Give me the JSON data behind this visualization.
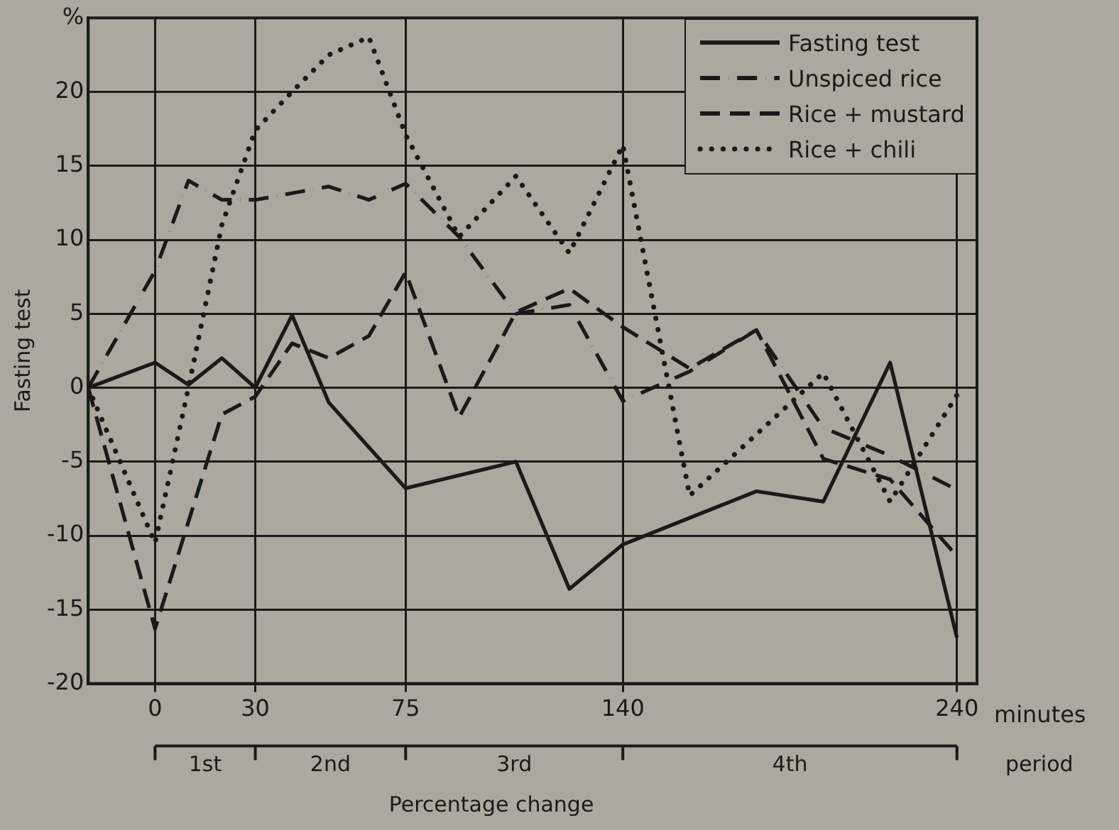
{
  "chart_data": {
    "type": "line",
    "title": "Percentage change",
    "xlabel": "minutes",
    "ylabel": "Fasting test",
    "annotations": [
      "1st",
      "2nd",
      "3rd",
      "4th",
      "period"
    ],
    "xlim": [
      -20,
      246
    ],
    "xticks": [
      0,
      30,
      75,
      140,
      240
    ],
    "ylim": [
      -20,
      25
    ],
    "yticks": [
      -20,
      -15,
      -10,
      -5,
      0,
      5,
      10,
      15,
      20,
      {
        "value": 25,
        "label": "%"
      }
    ],
    "grid": true,
    "legend": "top right",
    "marker": "none",
    "series": [
      {
        "name": "Fasting test",
        "color": "#1a1a1a",
        "line_style": "solid",
        "x": [
          -20,
          0,
          10,
          20,
          30,
          41,
          52,
          75,
          108,
          124,
          140,
          180,
          200,
          220,
          240
        ],
        "values": [
          0,
          1.7,
          0.2,
          2,
          0,
          4.9,
          -1,
          -6.8,
          -5,
          -13.6,
          -10.6,
          -7,
          -7.7,
          1.7,
          -16.9
        ]
      },
      {
        "name": "Unspiced rice",
        "color": "#1a1a1a",
        "line_style": "dashdot",
        "x": [
          -20,
          0,
          10,
          20,
          30,
          52,
          64,
          75,
          91,
          108,
          124,
          140,
          160,
          180,
          200,
          220,
          240
        ],
        "values": [
          0,
          7.9,
          14,
          12.7,
          12.7,
          13.6,
          12.7,
          13.8,
          10.2,
          5,
          5.6,
          -0.9,
          1.1,
          3.9,
          -2.7,
          -4.6,
          -6.9
        ]
      },
      {
        "name": "Rice + mustard",
        "color": "#1a1a1a",
        "line_style": "dashed",
        "x": [
          -20,
          0,
          20,
          30,
          41,
          52,
          64,
          75,
          91,
          108,
          124,
          140,
          160,
          180,
          200,
          220,
          240
        ],
        "values": [
          0,
          -16.3,
          -1.8,
          -0.6,
          3,
          2,
          3.5,
          7.8,
          -2,
          5.1,
          6.7,
          4.1,
          1.3,
          3.9,
          -4.8,
          -6.2,
          -11.4
        ]
      },
      {
        "name": "Rice + chili",
        "color": "#1a1a1a",
        "line_style": "dotted",
        "x": [
          -20,
          0,
          10,
          20,
          30,
          41,
          52,
          64,
          75,
          91,
          108,
          124,
          140,
          160,
          200,
          220,
          240
        ],
        "values": [
          0,
          -10.5,
          0,
          11,
          17.4,
          20,
          22.5,
          23.7,
          17.1,
          10.2,
          14.3,
          9.1,
          16.4,
          -7.3,
          1,
          -7.7,
          -0.5
        ]
      }
    ]
  }
}
